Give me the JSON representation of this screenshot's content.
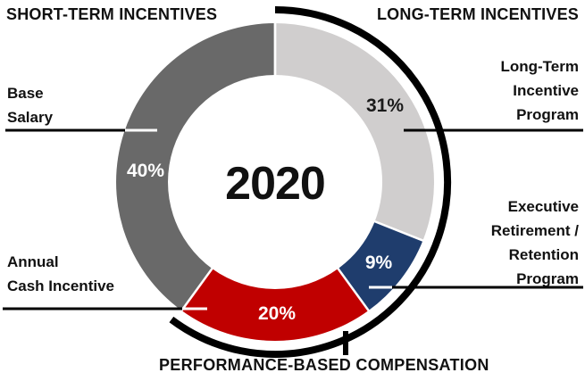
{
  "header": {
    "left_label": "SHORT-TERM INCENTIVES",
    "right_label": "LONG-TERM INCENTIVES"
  },
  "footer": {
    "label": "PERFORMANCE-BASED COMPENSATION"
  },
  "callouts": {
    "base_salary": "Base\nSalary",
    "annual_cash_incentive": "Annual\nCash Incentive",
    "long_term_incentive_program": "Long-Term\nIncentive\nProgram",
    "executive_retirement_retention_program": "Executive\nRetirement /\nRetention\nProgram"
  },
  "chart_data": {
    "type": "pie",
    "donut": true,
    "title": "2020",
    "start_angle_deg": 0,
    "direction": "clockwise",
    "legend_position": "none",
    "slices": [
      {
        "name": "Long-Term Incentive Program",
        "value": 31,
        "label": "31%",
        "color": "#d0cece",
        "label_color": "#1a1a1a"
      },
      {
        "name": "Executive Retirement / Retention Program",
        "value": 9,
        "label": "9%",
        "color": "#1f3d6d",
        "label_color": "#ffffff"
      },
      {
        "name": "Annual Cash Incentive",
        "value": 20,
        "label": "20%",
        "color": "#c00000",
        "label_color": "#ffffff"
      },
      {
        "name": "Base Salary",
        "value": 40,
        "label": "40%",
        "color": "#696969",
        "label_color": "#ffffff"
      }
    ],
    "annotations": {
      "bracket_arc_label": "LONG-TERM INCENTIVES + PERFORMANCE-BASED COMPENSATION",
      "bracket_color": "#000000"
    }
  }
}
